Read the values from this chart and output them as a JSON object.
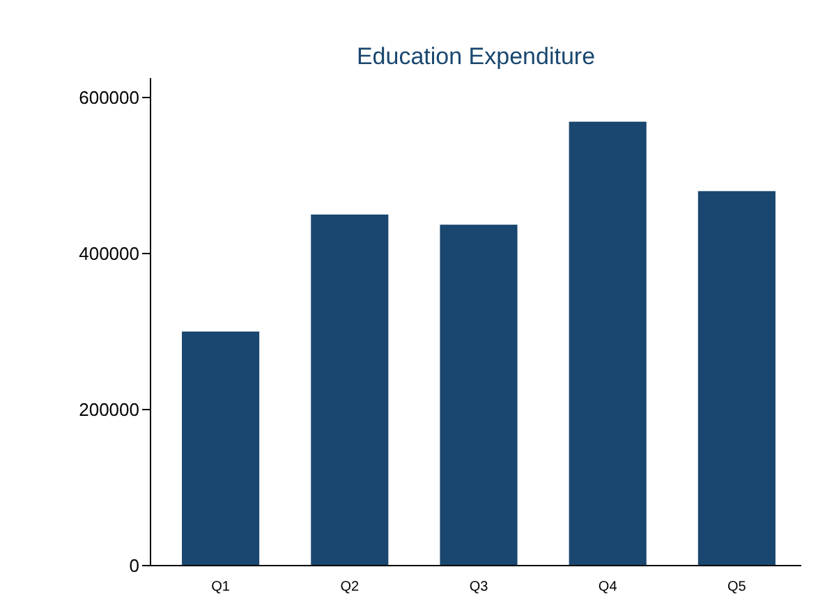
{
  "chart_data": {
    "type": "bar",
    "title": "Education Expenditure",
    "categories": [
      "Q1",
      "Q2",
      "Q3",
      "Q4",
      "Q5"
    ],
    "values": [
      300000,
      450000,
      437000,
      569000,
      480000
    ],
    "color": "#1a476f",
    "ylim": [
      0,
      625000
    ],
    "yticks": [
      0,
      200000,
      400000,
      600000
    ],
    "grid": false
  }
}
